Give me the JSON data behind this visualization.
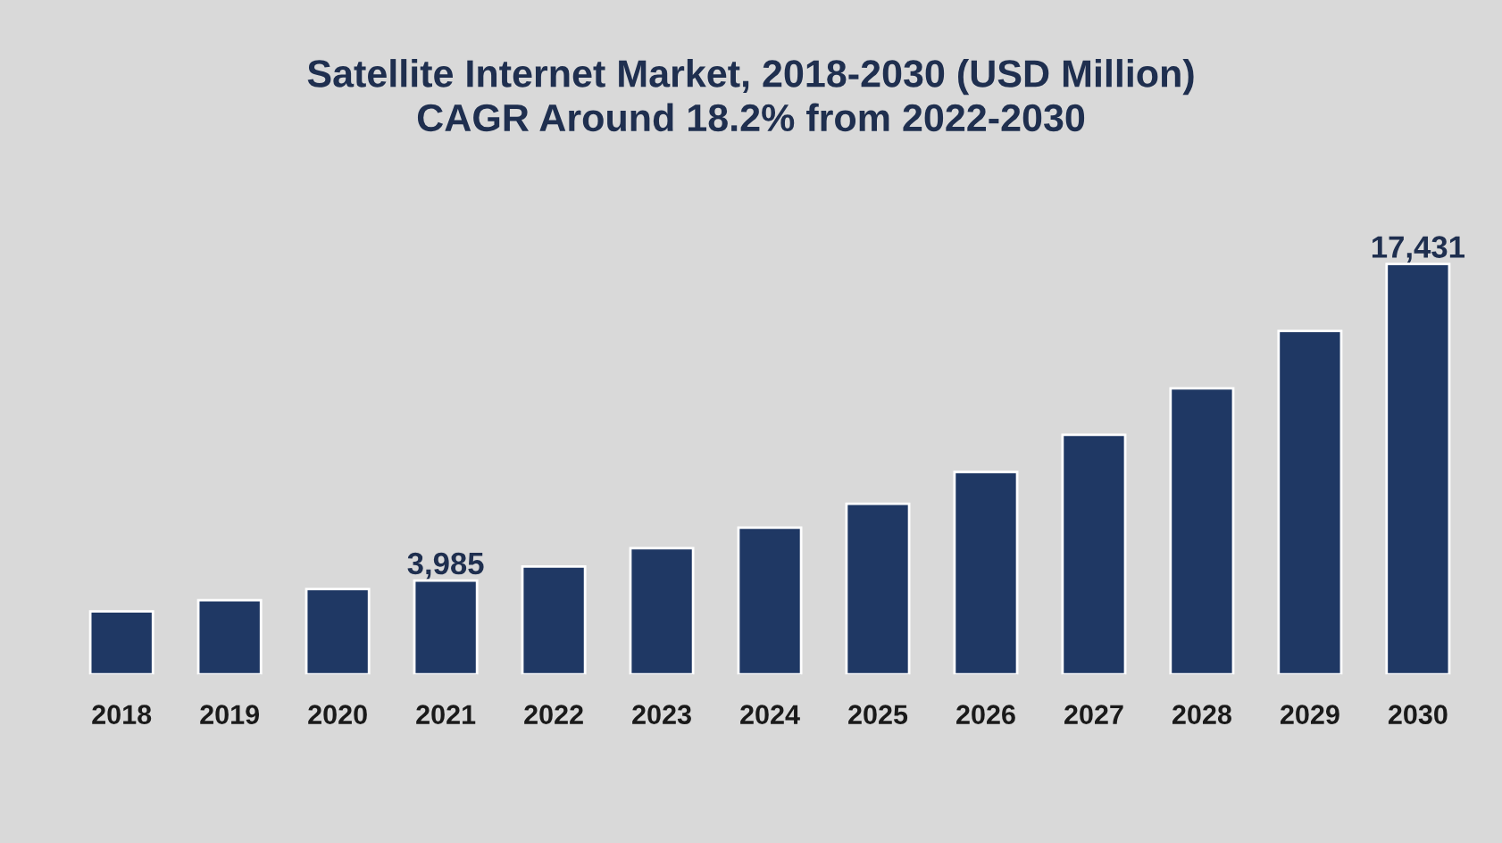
{
  "chart_data": {
    "type": "bar",
    "title": "Satellite Internet Market, 2018-2030 (USD Million)\nCAGR Around 18.2% from 2022-2030",
    "categories": [
      "2018",
      "2019",
      "2020",
      "2021",
      "2022",
      "2023",
      "2024",
      "2025",
      "2026",
      "2027",
      "2028",
      "2029",
      "2030"
    ],
    "values": [
      2680,
      3150,
      3630,
      3985,
      4580,
      5360,
      6230,
      7250,
      8600,
      10180,
      12150,
      14590,
      17431
    ],
    "value_labels": [
      null,
      null,
      null,
      "3,985",
      null,
      null,
      null,
      null,
      null,
      null,
      null,
      null,
      "17,431"
    ],
    "color": "#1f3864",
    "grid": false,
    "legend": false,
    "tick_labels": "x"
  }
}
